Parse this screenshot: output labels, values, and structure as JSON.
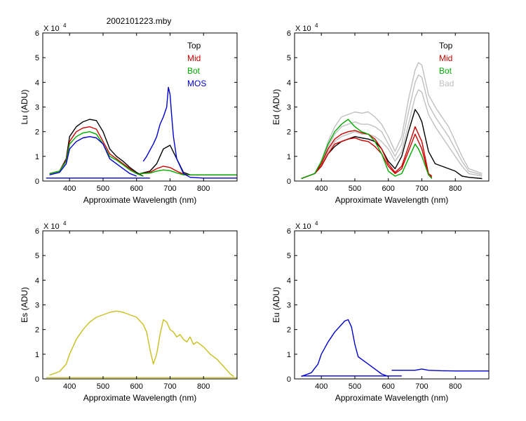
{
  "figure_title": "2002101223.mby",
  "colors": {
    "top": "#000000",
    "mid": "#cc0000",
    "bot": "#00aa00",
    "mos": "#0000cc",
    "bad": "#c0c0c0",
    "es": "#c8c020",
    "eu": "#0000cc"
  },
  "chart_data": [
    {
      "id": "lu",
      "type": "line",
      "title": "2002101223.mby",
      "xlabel": "Approximate Wavelength (nm)",
      "ylabel": "Lu (ADU)",
      "y_multiplier": "X 10",
      "y_exponent": "4",
      "xlim": [
        320,
        900
      ],
      "ylim": [
        0,
        6
      ],
      "xticks": [
        "400",
        "500",
        "600",
        "700",
        "800"
      ],
      "yticks": [
        "0",
        "1",
        "2",
        "3",
        "4",
        "5",
        "6"
      ],
      "legend_position": "top-right",
      "legend": [
        {
          "label": "Top",
          "color": "#000000",
          "text_color": "#000000"
        },
        {
          "label": "Mid",
          "color": "#cc0000",
          "text_color": "#cc0000"
        },
        {
          "label": "Bot",
          "color": "#00aa00",
          "text_color": "#00aa00"
        },
        {
          "label": "MOS",
          "color": "#0000cc",
          "text_color": "#0000cc"
        }
      ],
      "series": [
        {
          "name": "Top",
          "color": "#000000",
          "x": [
            340,
            370,
            390,
            400,
            420,
            440,
            460,
            480,
            500,
            520,
            540,
            560,
            580,
            600,
            620
          ],
          "y": [
            0.3,
            0.4,
            0.9,
            1.8,
            2.2,
            2.4,
            2.5,
            2.45,
            2.0,
            1.3,
            1.0,
            0.8,
            0.55,
            0.35,
            0.2
          ]
        },
        {
          "name": "Top",
          "color": "#000000",
          "x": [
            610,
            640,
            660,
            680,
            700,
            720,
            740,
            760,
            800,
            900
          ],
          "y": [
            0.3,
            0.4,
            0.7,
            1.3,
            1.45,
            0.9,
            0.35,
            0.25,
            0.25,
            0.25
          ]
        },
        {
          "name": "Mid",
          "color": "#cc0000",
          "x": [
            340,
            370,
            390,
            400,
            420,
            440,
            460,
            480,
            500,
            520,
            540,
            560,
            580,
            600,
            620
          ],
          "y": [
            0.3,
            0.4,
            0.85,
            1.6,
            2.0,
            2.15,
            2.2,
            2.1,
            1.6,
            1.1,
            0.9,
            0.7,
            0.5,
            0.3,
            0.2
          ]
        },
        {
          "name": "Mid",
          "color": "#cc0000",
          "x": [
            610,
            640,
            660,
            680,
            700,
            720,
            740,
            760,
            800,
            900
          ],
          "y": [
            0.3,
            0.35,
            0.5,
            0.6,
            0.55,
            0.4,
            0.28,
            0.25,
            0.25,
            0.25
          ]
        },
        {
          "name": "Bot",
          "color": "#00aa00",
          "x": [
            340,
            370,
            390,
            400,
            420,
            440,
            460,
            480,
            500,
            520,
            540,
            560,
            580,
            600,
            620
          ],
          "y": [
            0.3,
            0.4,
            0.8,
            1.5,
            1.8,
            1.95,
            2.0,
            1.9,
            1.5,
            1.0,
            0.85,
            0.65,
            0.45,
            0.3,
            0.2
          ]
        },
        {
          "name": "Bot",
          "color": "#00aa00",
          "x": [
            610,
            640,
            660,
            680,
            700,
            720,
            740,
            760,
            800,
            900
          ],
          "y": [
            0.3,
            0.32,
            0.4,
            0.45,
            0.42,
            0.33,
            0.25,
            0.25,
            0.25,
            0.25
          ]
        },
        {
          "name": "MOS",
          "color": "#0000cc",
          "x": [
            340,
            370,
            390,
            400,
            420,
            440,
            460,
            480,
            500,
            520,
            540,
            560,
            580,
            600
          ],
          "y": [
            0.25,
            0.35,
            0.7,
            1.3,
            1.6,
            1.75,
            1.8,
            1.75,
            1.5,
            0.9,
            0.7,
            0.5,
            0.3,
            0.2
          ]
        },
        {
          "name": "MOS",
          "color": "#0000cc",
          "x": [
            620,
            630,
            640,
            650,
            660,
            670,
            680,
            690,
            695,
            700,
            705,
            710,
            720,
            740,
            760,
            800,
            900
          ],
          "y": [
            0.8,
            1.0,
            1.25,
            1.5,
            1.8,
            2.3,
            2.6,
            3.0,
            3.8,
            3.5,
            2.6,
            1.8,
            0.9,
            0.3,
            0.15,
            0.12,
            0.12
          ]
        },
        {
          "name": "MOS",
          "color": "#0000cc",
          "x": [
            330,
            600,
            640
          ],
          "y": [
            0.12,
            0.12,
            0.12
          ]
        }
      ]
    },
    {
      "id": "ed",
      "type": "line",
      "xlabel": "Approximate Wavelength (nm)",
      "ylabel": "Ed  (ADU)",
      "y_multiplier": "X 10",
      "y_exponent": "4",
      "xlim": [
        320,
        900
      ],
      "ylim": [
        0,
        6
      ],
      "xticks": [
        "400",
        "500",
        "600",
        "700",
        "800"
      ],
      "yticks": [
        "0",
        "1",
        "2",
        "3",
        "4",
        "5",
        "6"
      ],
      "legend_position": "top-right",
      "legend": [
        {
          "label": "Top",
          "color": "#000000",
          "text_color": "#000000"
        },
        {
          "label": "Mid",
          "color": "#cc0000",
          "text_color": "#cc0000"
        },
        {
          "label": "Bot",
          "color": "#00aa00",
          "text_color": "#00aa00"
        },
        {
          "label": "Bad",
          "color": "#c0c0c0",
          "text_color": "#c0c0c0"
        }
      ],
      "series": [
        {
          "name": "Bad",
          "color": "#c0c0c0",
          "x": [
            340,
            380,
            400,
            420,
            440,
            460,
            480,
            500,
            520,
            540,
            560,
            580,
            600,
            620,
            640,
            660,
            680,
            690,
            700,
            720,
            740,
            760,
            780,
            800,
            820,
            840,
            880
          ],
          "y": [
            0.1,
            0.3,
            0.8,
            1.6,
            2.2,
            2.6,
            2.7,
            2.8,
            2.75,
            2.8,
            2.6,
            2.3,
            1.8,
            1.2,
            1.8,
            3.3,
            4.5,
            4.8,
            4.7,
            3.5,
            3.0,
            2.6,
            2.2,
            1.6,
            1.0,
            0.5,
            0.3
          ]
        },
        {
          "name": "Bad",
          "color": "#c0c0c0",
          "x": [
            340,
            380,
            400,
            420,
            440,
            460,
            480,
            500,
            520,
            540,
            560,
            580,
            600,
            620,
            640,
            660,
            680,
            690,
            700,
            720,
            740,
            760,
            780,
            800,
            820,
            840,
            880
          ],
          "y": [
            0.1,
            0.3,
            0.7,
            1.4,
            1.9,
            2.2,
            2.3,
            2.4,
            2.3,
            2.3,
            2.2,
            2.0,
            1.5,
            1.0,
            1.5,
            2.8,
            4.0,
            4.3,
            4.2,
            3.1,
            2.6,
            2.2,
            1.8,
            1.3,
            0.8,
            0.4,
            0.25
          ]
        },
        {
          "name": "Bad",
          "color": "#c0c0c0",
          "x": [
            340,
            380,
            400,
            420,
            440,
            460,
            480,
            500,
            520,
            540,
            560,
            580,
            600,
            620,
            640,
            660,
            680,
            690,
            700,
            720,
            740,
            760,
            780,
            800,
            820,
            840,
            880
          ],
          "y": [
            0.1,
            0.3,
            0.6,
            1.2,
            1.6,
            1.8,
            1.9,
            2.0,
            1.9,
            1.9,
            1.8,
            1.6,
            1.3,
            0.8,
            1.2,
            2.3,
            3.4,
            3.7,
            3.6,
            2.7,
            2.2,
            1.8,
            1.4,
            1.0,
            0.6,
            0.3,
            0.2
          ]
        },
        {
          "name": "Top",
          "color": "#000000",
          "x": [
            340,
            380,
            400,
            420,
            440,
            460,
            480,
            500,
            520,
            540,
            560,
            580,
            600,
            620,
            640,
            660,
            680,
            690,
            700,
            720,
            740,
            760,
            780,
            800,
            820,
            840,
            880
          ],
          "y": [
            0.1,
            0.3,
            0.6,
            1.1,
            1.4,
            1.6,
            1.7,
            1.8,
            1.75,
            1.7,
            1.6,
            1.3,
            0.8,
            0.5,
            1.0,
            2.0,
            2.9,
            2.7,
            2.4,
            1.2,
            0.7,
            0.6,
            0.5,
            0.4,
            0.2,
            0.15,
            0.1
          ]
        },
        {
          "name": "Mid",
          "color": "#cc0000",
          "x": [
            340,
            380,
            400,
            420,
            440,
            460,
            480,
            500,
            520,
            540,
            560,
            580,
            600,
            620,
            640,
            660,
            680,
            690,
            700,
            720,
            730
          ],
          "y": [
            0.1,
            0.3,
            0.7,
            1.3,
            1.7,
            1.9,
            2.0,
            2.05,
            1.95,
            1.9,
            1.7,
            1.3,
            0.7,
            0.35,
            0.6,
            1.4,
            2.2,
            1.9,
            1.6,
            0.3,
            0.2
          ]
        },
        {
          "name": "Mid",
          "color": "#cc0000",
          "x": [
            340,
            380,
            400,
            420,
            440,
            460,
            480,
            500,
            520,
            540,
            560,
            580,
            600,
            620,
            640,
            660,
            680,
            690,
            700,
            720,
            730
          ],
          "y": [
            0.1,
            0.3,
            0.6,
            1.1,
            1.5,
            1.6,
            1.7,
            1.75,
            1.65,
            1.6,
            1.4,
            1.1,
            0.6,
            0.3,
            0.5,
            1.2,
            1.9,
            1.6,
            1.3,
            0.25,
            0.15
          ]
        },
        {
          "name": "Bot",
          "color": "#00aa00",
          "x": [
            340,
            380,
            400,
            420,
            440,
            460,
            480,
            500,
            520,
            540,
            560,
            580,
            600,
            620,
            640,
            660,
            680,
            690,
            700,
            720,
            730
          ],
          "y": [
            0.1,
            0.3,
            0.8,
            1.5,
            2.0,
            2.3,
            2.5,
            2.2,
            2.0,
            1.9,
            1.6,
            1.1,
            0.4,
            0.2,
            0.3,
            0.9,
            1.5,
            1.3,
            1.0,
            0.25,
            0.1
          ]
        }
      ]
    },
    {
      "id": "es",
      "type": "line",
      "xlabel": "Approximate Wavelength (nm)",
      "ylabel": "Es  (ADU)",
      "y_multiplier": "X 10",
      "y_exponent": "4",
      "xlim": [
        320,
        900
      ],
      "ylim": [
        0,
        6
      ],
      "xticks": [
        "400",
        "500",
        "600",
        "700",
        "800"
      ],
      "yticks": [
        "0",
        "1",
        "2",
        "3",
        "4",
        "5",
        "6"
      ],
      "series": [
        {
          "name": "Es",
          "color": "#c8c020",
          "x": [
            340,
            370,
            390,
            400,
            420,
            440,
            460,
            480,
            500,
            520,
            540,
            560,
            580,
            600,
            620,
            630,
            640,
            650,
            660,
            670,
            680,
            690,
            700,
            710,
            720,
            730,
            740,
            750,
            760,
            770,
            780,
            800,
            820,
            840,
            860,
            880,
            890
          ],
          "y": [
            0.15,
            0.3,
            0.6,
            1.0,
            1.6,
            2.0,
            2.3,
            2.5,
            2.6,
            2.7,
            2.75,
            2.7,
            2.6,
            2.5,
            2.2,
            1.9,
            1.2,
            0.6,
            1.0,
            1.8,
            2.4,
            2.3,
            2.0,
            1.9,
            1.7,
            1.8,
            1.6,
            1.5,
            1.7,
            1.4,
            1.5,
            1.3,
            1.0,
            0.8,
            0.5,
            0.2,
            0.1
          ]
        },
        {
          "name": "Es",
          "color": "#c8c020",
          "x": [
            330,
            640,
            700,
            900
          ],
          "y": [
            0.05,
            0.05,
            0.05,
            0.05
          ]
        }
      ]
    },
    {
      "id": "eu",
      "type": "line",
      "xlabel": "Approximate Wavelength (nm)",
      "ylabel": "Eu  (ADU)",
      "y_multiplier": "X 10",
      "y_exponent": "4",
      "xlim": [
        320,
        900
      ],
      "ylim": [
        0,
        6
      ],
      "xticks": [
        "400",
        "500",
        "600",
        "700",
        "800"
      ],
      "yticks": [
        "0",
        "1",
        "2",
        "3",
        "4",
        "5",
        "6"
      ],
      "series": [
        {
          "name": "Eu",
          "color": "#0000cc",
          "x": [
            340,
            370,
            390,
            400,
            420,
            440,
            460,
            470,
            480,
            490,
            500,
            510,
            520,
            540,
            560,
            580,
            600
          ],
          "y": [
            0.1,
            0.25,
            0.6,
            1.0,
            1.5,
            1.9,
            2.2,
            2.35,
            2.4,
            2.1,
            1.4,
            0.9,
            0.8,
            0.6,
            0.4,
            0.2,
            0.1
          ]
        },
        {
          "name": "Eu",
          "color": "#0000cc",
          "x": [
            340,
            600,
            640
          ],
          "y": [
            0.12,
            0.12,
            0.12
          ]
        },
        {
          "name": "Eu",
          "color": "#0000cc",
          "x": [
            610,
            650,
            680,
            700,
            720,
            760,
            800,
            900
          ],
          "y": [
            0.35,
            0.35,
            0.35,
            0.4,
            0.35,
            0.33,
            0.32,
            0.32
          ]
        }
      ]
    }
  ]
}
